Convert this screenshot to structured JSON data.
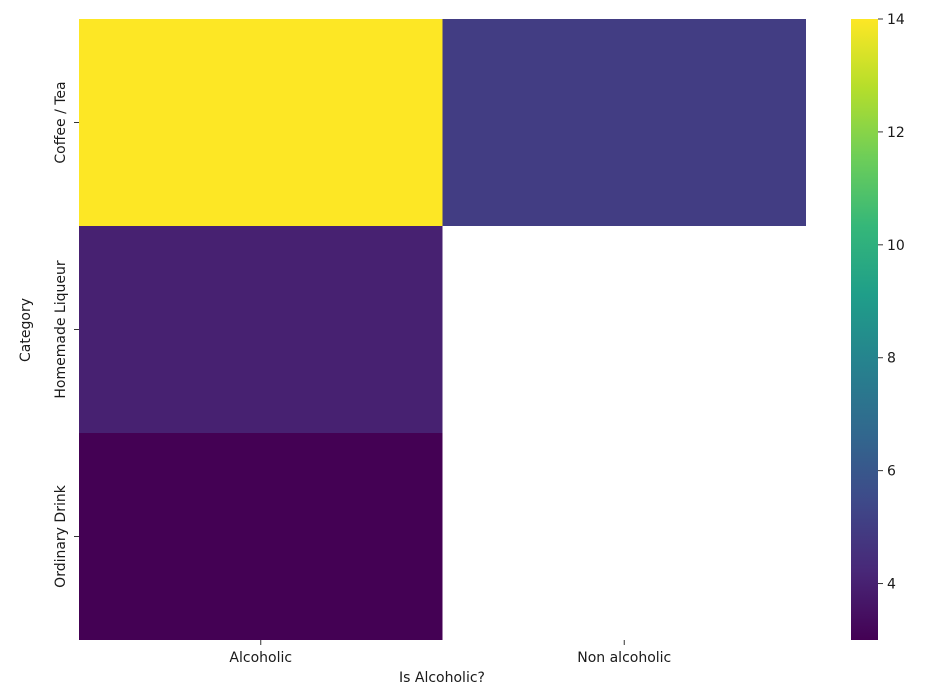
{
  "chart_data": {
    "type": "heatmap",
    "title": "",
    "xlabel": "Is Alcoholic?",
    "ylabel": "Category",
    "x_categories": [
      "Alcoholic",
      "Non alcoholic"
    ],
    "y_categories": [
      "Coffee / Tea",
      "Homemade Liqueur",
      "Ordinary Drink"
    ],
    "values": [
      [
        14,
        5
      ],
      [
        4,
        null
      ],
      [
        3,
        null
      ]
    ],
    "colormap": "viridis",
    "vmin": 3,
    "vmax": 14,
    "colorbar_ticks": [
      4,
      6,
      8,
      10,
      12,
      14
    ],
    "missing_color": "#ffffff"
  }
}
